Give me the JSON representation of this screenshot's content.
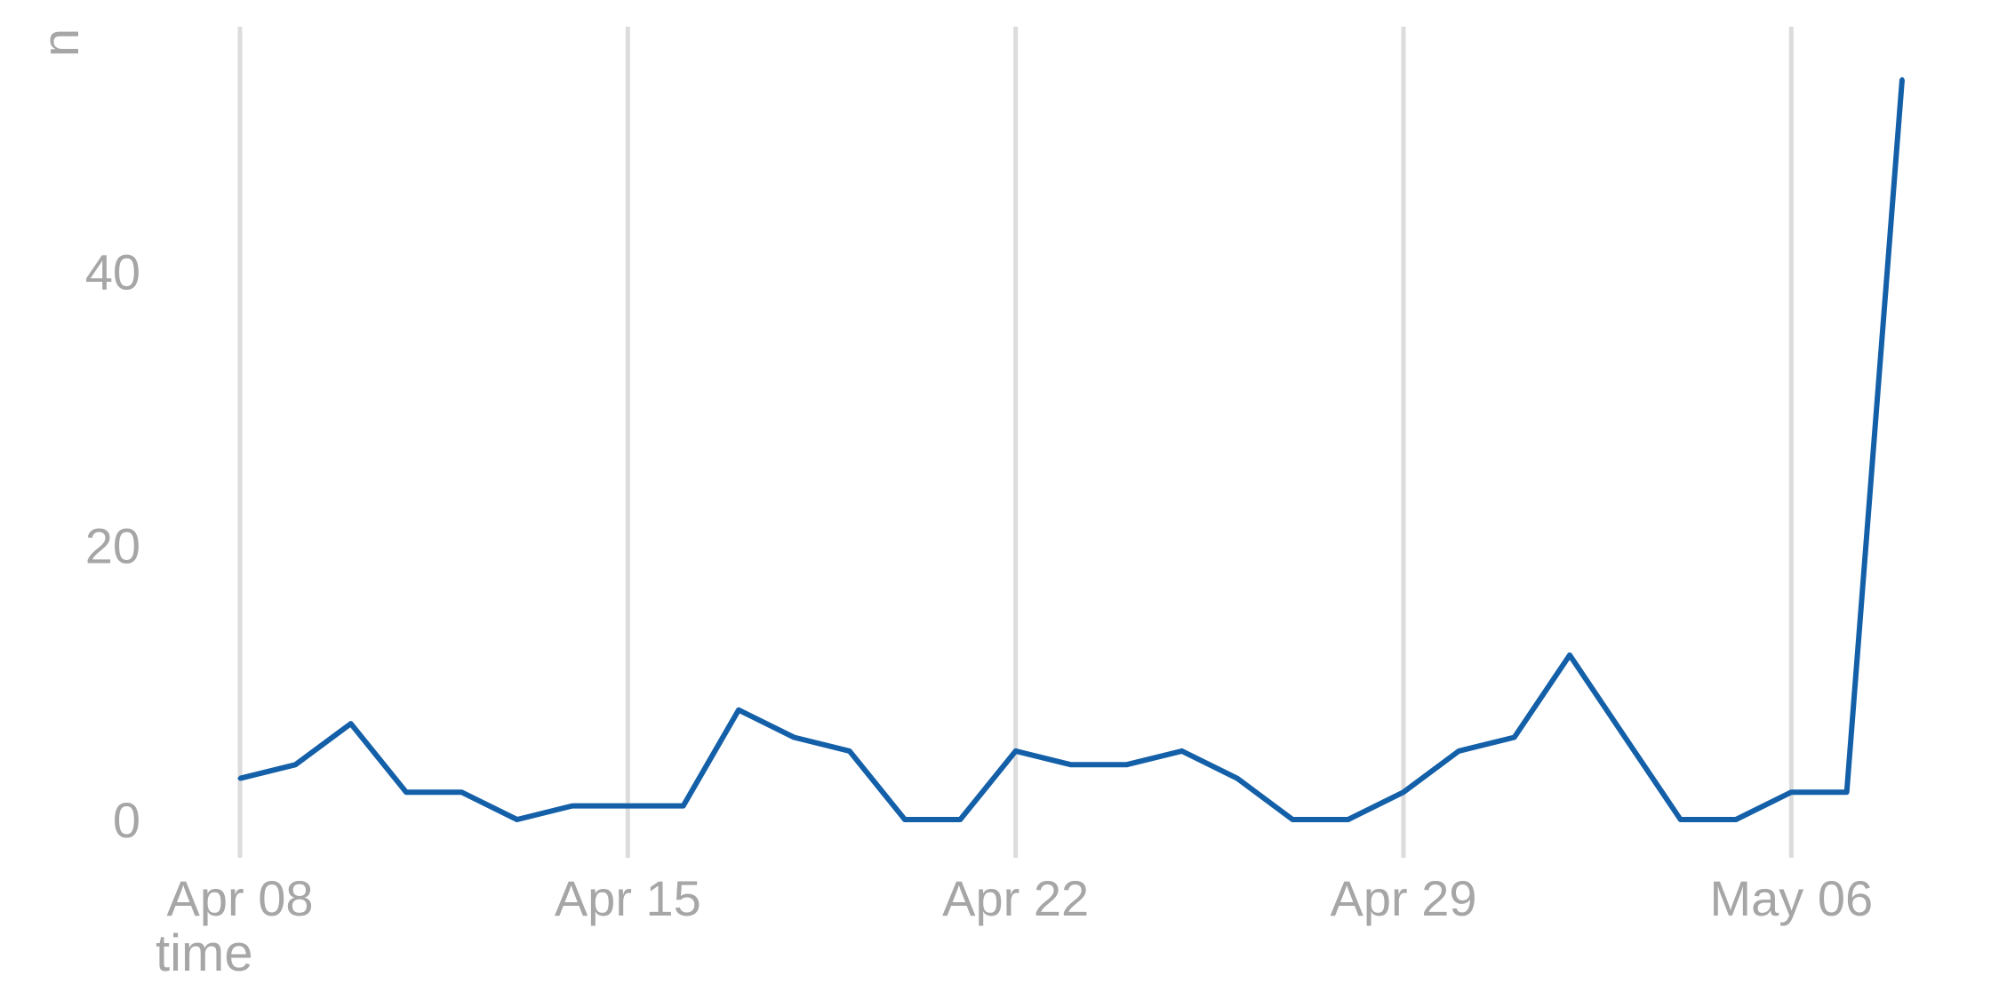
{
  "chart_data": {
    "type": "line",
    "title": "",
    "xlabel": "time",
    "ylabel": "n",
    "x_ticks": [
      "Apr 08",
      "Apr 15",
      "Apr 22",
      "Apr 29",
      "May 06"
    ],
    "y_ticks": [
      "0",
      "20",
      "40"
    ],
    "xlim": [
      "2024-04-08",
      "2024-05-08"
    ],
    "ylim": [
      0,
      55
    ],
    "grid": {
      "vertical": true,
      "horizontal": false
    },
    "series": [
      {
        "color": "#1460a8",
        "x": [
          "2024-04-08",
          "2024-04-09",
          "2024-04-10",
          "2024-04-11",
          "2024-04-12",
          "2024-04-13",
          "2024-04-14",
          "2024-04-15",
          "2024-04-16",
          "2024-04-17",
          "2024-04-18",
          "2024-04-19",
          "2024-04-20",
          "2024-04-21",
          "2024-04-22",
          "2024-04-23",
          "2024-04-24",
          "2024-04-25",
          "2024-04-26",
          "2024-04-27",
          "2024-04-28",
          "2024-04-29",
          "2024-04-30",
          "2024-05-01",
          "2024-05-02",
          "2024-05-03",
          "2024-05-04",
          "2024-05-05",
          "2024-05-06",
          "2024-05-07",
          "2024-05-08"
        ],
        "values": [
          3,
          4,
          7,
          2,
          2,
          0,
          1,
          1,
          1,
          8,
          6,
          5,
          0,
          0,
          5,
          4,
          4,
          5,
          3,
          0,
          0,
          2,
          5,
          6,
          12,
          6,
          0,
          0,
          2,
          2,
          54
        ]
      }
    ]
  }
}
